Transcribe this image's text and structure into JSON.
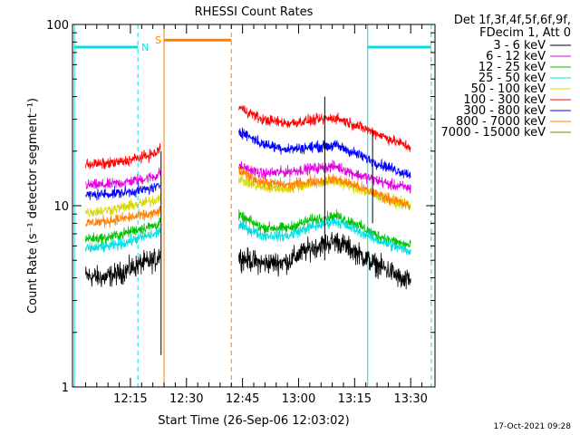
{
  "chart_data": {
    "type": "line",
    "title": "RHESSI Count Rates",
    "xlabel": "Start Time (26-Sep-06 12:03:02)",
    "ylabel": "Count Rate (s⁻¹ detector segment⁻¹)",
    "y_scale": "log",
    "ylim": [
      1,
      100
    ],
    "y_ticks": [
      {
        "value": 1,
        "label": "1"
      },
      {
        "value": 10,
        "label": "10"
      },
      {
        "value": 100,
        "label": "100"
      }
    ],
    "xlim_minutes": [
      0,
      43.5
    ],
    "x_ticks": [
      {
        "minute": 12,
        "label": "12:15"
      },
      {
        "minute": 27,
        "label": "12:30"
      },
      {
        "minute": 42,
        "label": "12:45"
      },
      {
        "minute": 57,
        "label": "13:00"
      },
      {
        "minute": 72,
        "label": "13:15"
      },
      {
        "minute": 87,
        "label": "13:30"
      }
    ],
    "legend_header": [
      "Det 1f,3f,4f,5f,6f,9f,",
      "FDecim 1, Att 0"
    ],
    "legend_position": "right",
    "series": [
      {
        "name": "3 - 6 keV",
        "color": "#000000",
        "points": [
          [
            0,
            4.1
          ],
          [
            5,
            4.0
          ],
          [
            10,
            4.3
          ],
          [
            15,
            4.8
          ],
          [
            19,
            5.0
          ],
          [
            20,
            5.6
          ],
          [
            41,
            5.2
          ],
          [
            47,
            4.8
          ],
          [
            54,
            4.9
          ],
          [
            60,
            5.8
          ],
          [
            67,
            6.4
          ],
          [
            72,
            5.6
          ],
          [
            77,
            4.8
          ],
          [
            82,
            4.3
          ],
          [
            85,
            3.8
          ],
          [
            87,
            3.9
          ]
        ]
      },
      {
        "name": "6 - 12 keV",
        "color": "#e000e0",
        "points": [
          [
            0,
            13.0
          ],
          [
            5,
            13.0
          ],
          [
            10,
            13.4
          ],
          [
            15,
            14.0
          ],
          [
            19,
            14.6
          ],
          [
            20,
            15.4
          ],
          [
            41,
            16.5
          ],
          [
            47,
            15.0
          ],
          [
            54,
            15.4
          ],
          [
            60,
            16.0
          ],
          [
            67,
            16.5
          ],
          [
            72,
            15.0
          ],
          [
            77,
            14.0
          ],
          [
            82,
            13.0
          ],
          [
            87,
            12.5
          ]
        ]
      },
      {
        "name": "12 - 25 keV",
        "color": "#00c000",
        "points": [
          [
            0,
            6.6
          ],
          [
            5,
            6.6
          ],
          [
            10,
            7.0
          ],
          [
            15,
            7.5
          ],
          [
            19,
            7.8
          ],
          [
            20,
            8.2
          ],
          [
            41,
            8.8
          ],
          [
            47,
            7.6
          ],
          [
            54,
            7.5
          ],
          [
            60,
            8.3
          ],
          [
            67,
            8.8
          ],
          [
            72,
            8.0
          ],
          [
            77,
            7.0
          ],
          [
            82,
            6.4
          ],
          [
            87,
            6.0
          ]
        ]
      },
      {
        "name": "25 - 50 keV",
        "color": "#00e0e0",
        "points": [
          [
            0,
            5.8
          ],
          [
            5,
            5.9
          ],
          [
            10,
            6.2
          ],
          [
            15,
            6.7
          ],
          [
            19,
            7.0
          ],
          [
            20,
            7.4
          ],
          [
            41,
            7.8
          ],
          [
            47,
            6.9
          ],
          [
            54,
            6.8
          ],
          [
            60,
            7.6
          ],
          [
            67,
            8.2
          ],
          [
            72,
            7.4
          ],
          [
            77,
            6.6
          ],
          [
            82,
            6.0
          ],
          [
            87,
            5.6
          ]
        ]
      },
      {
        "name": "50 - 100 keV",
        "color": "#d8d800",
        "points": [
          [
            0,
            9.2
          ],
          [
            5,
            9.4
          ],
          [
            10,
            9.8
          ],
          [
            15,
            10.3
          ],
          [
            19,
            10.8
          ],
          [
            20,
            11.5
          ],
          [
            41,
            14.0
          ],
          [
            47,
            12.6
          ],
          [
            54,
            12.4
          ],
          [
            60,
            13.2
          ],
          [
            67,
            13.6
          ],
          [
            72,
            12.6
          ],
          [
            77,
            11.5
          ],
          [
            82,
            10.6
          ],
          [
            87,
            10.0
          ]
        ]
      },
      {
        "name": "100 - 300 keV",
        "color": "#ff0000",
        "points": [
          [
            0,
            17.0
          ],
          [
            5,
            17.0
          ],
          [
            10,
            17.5
          ],
          [
            15,
            18.5
          ],
          [
            19,
            19.5
          ],
          [
            20,
            21.0
          ],
          [
            41,
            35.0
          ],
          [
            47,
            30.0
          ],
          [
            54,
            28.5
          ],
          [
            60,
            29.5
          ],
          [
            67,
            30.5
          ],
          [
            72,
            28.0
          ],
          [
            77,
            25.5
          ],
          [
            82,
            23.0
          ],
          [
            87,
            21.0
          ]
        ]
      },
      {
        "name": "300 - 800 keV",
        "color": "#0000ff",
        "points": [
          [
            0,
            11.4
          ],
          [
            5,
            11.6
          ],
          [
            10,
            11.8
          ],
          [
            15,
            12.2
          ],
          [
            19,
            12.6
          ],
          [
            20,
            13.0
          ],
          [
            41,
            26.0
          ],
          [
            47,
            22.0
          ],
          [
            54,
            20.5
          ],
          [
            60,
            21.0
          ],
          [
            67,
            21.5
          ],
          [
            72,
            19.5
          ],
          [
            77,
            17.5
          ],
          [
            82,
            16.0
          ],
          [
            87,
            14.8
          ]
        ]
      },
      {
        "name": "800 - 7000 keV",
        "color": "#ff8000",
        "points": [
          [
            0,
            8.0
          ],
          [
            5,
            8.2
          ],
          [
            10,
            8.5
          ],
          [
            15,
            8.8
          ],
          [
            19,
            9.1
          ],
          [
            20,
            9.5
          ],
          [
            41,
            15.5
          ],
          [
            47,
            13.5
          ],
          [
            54,
            13.0
          ],
          [
            60,
            13.6
          ],
          [
            67,
            14.0
          ],
          [
            72,
            13.0
          ],
          [
            77,
            11.8
          ],
          [
            82,
            10.8
          ],
          [
            87,
            9.9
          ]
        ]
      },
      {
        "name": "7000 - 15000 keV",
        "color": "#808000",
        "points": []
      }
    ],
    "attenuator_bars": [
      {
        "label": "N",
        "color": "#00e0e0",
        "y": 75
      },
      {
        "label": "S",
        "color": "#ff8000",
        "y": 82
      },
      {
        "label": "",
        "color": "#00e0e0",
        "y": 75
      }
    ],
    "timestamp": "17-Oct-2021 09:28"
  }
}
